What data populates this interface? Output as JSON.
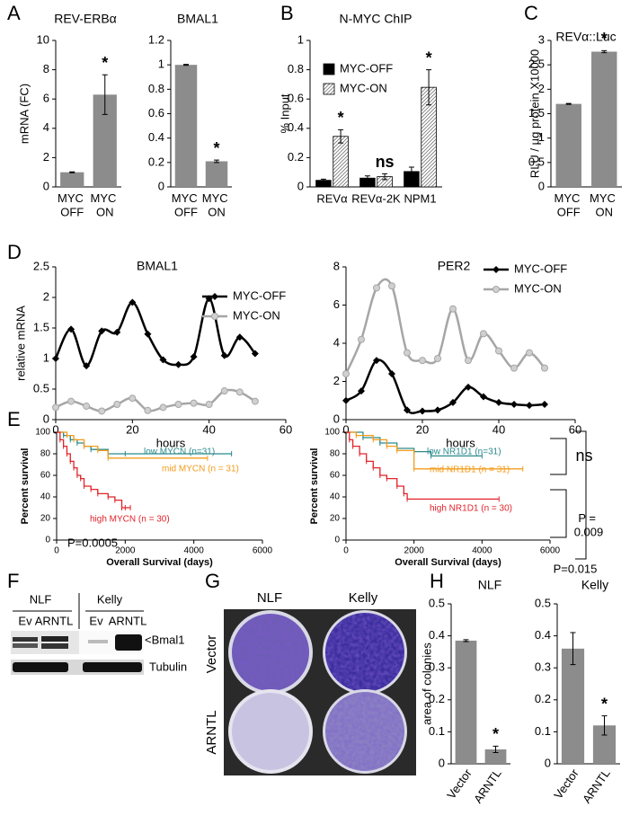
{
  "panels": [
    "A",
    "B",
    "C",
    "D",
    "E",
    "F",
    "G",
    "H"
  ],
  "blot": {
    "groups": [
      "NLF",
      "Kelly"
    ],
    "lanes": [
      "Ev",
      "ARNTL",
      "Ev",
      "ARNTL"
    ],
    "bands": [
      "<Bmal1",
      "Tubulin"
    ]
  },
  "plates": {
    "columns": [
      "NLF",
      "Kelly"
    ],
    "rows": [
      "Vector",
      "ARNTL"
    ]
  },
  "chart_data": [
    {
      "type": "bar",
      "title": "REV-ERBα",
      "y_label": "mRNA (FC)",
      "categories": [
        "MYC OFF",
        "MYC ON"
      ],
      "values": [
        1,
        6.3
      ],
      "errors": [
        0.03,
        1.35
      ],
      "color": "#8c8c8c",
      "ylim": [
        0,
        10
      ],
      "yticks": [
        0,
        2,
        4,
        6,
        8,
        10
      ],
      "annotations": [
        "*"
      ]
    },
    {
      "type": "bar",
      "title": "BMAL1",
      "categories": [
        "MYC OFF",
        "MYC ON"
      ],
      "values": [
        1,
        0.21
      ],
      "errors": [
        0.004,
        0.01
      ],
      "color": "#8c8c8c",
      "ylim": [
        0,
        1.2
      ],
      "yticks": [
        0,
        0.2,
        0.4,
        0.6,
        0.8,
        1,
        1.2
      ],
      "annotations": [
        "*"
      ]
    },
    {
      "type": "bar",
      "title": "N-MYC ChIP",
      "y_label": "% Input",
      "categories": [
        "REVα",
        "REVα-2K",
        "NPM1"
      ],
      "series": [
        {
          "name": "MYC-OFF",
          "color": "#000000",
          "values": [
            0.045,
            0.06,
            0.105
          ],
          "errors": [
            0.008,
            0.015,
            0.03
          ]
        },
        {
          "name": "MYC-ON",
          "color": "#ffffff",
          "pattern": "hatch",
          "values": [
            0.345,
            0.07,
            0.68
          ],
          "errors": [
            0.045,
            0.02,
            0.12
          ]
        }
      ],
      "ylim": [
        0,
        1
      ],
      "yticks": [
        0,
        0.2,
        0.4,
        0.6,
        0.8,
        1
      ],
      "annotations": [
        "*",
        "ns",
        "*"
      ]
    },
    {
      "type": "bar",
      "title": "REVα::Luc",
      "y_label": "RLU / µg protein X10000",
      "categories": [
        "MYC OFF",
        "MYC ON"
      ],
      "values": [
        1.7,
        2.77
      ],
      "errors": [
        0.01,
        0.02
      ],
      "color": "#8c8c8c",
      "ylim": [
        0,
        3
      ],
      "yticks": [
        0,
        0.5,
        1,
        1.5,
        2,
        2.5,
        3
      ],
      "annotations": [
        "*"
      ]
    },
    {
      "type": "line",
      "title": "BMAL1",
      "x_label": "hours",
      "y_label": "relative mRNA",
      "x": [
        0,
        4,
        8,
        12,
        16,
        20,
        24,
        28,
        32,
        36,
        40,
        44,
        48,
        52
      ],
      "series": [
        {
          "name": "MYC-OFF",
          "color": "#000000",
          "marker": "diamond",
          "values": [
            1.0,
            1.48,
            0.88,
            1.45,
            1.43,
            1.92,
            1.4,
            0.98,
            0.9,
            1.03,
            1.98,
            1.05,
            1.35,
            1.08
          ]
        },
        {
          "name": "MYC-ON",
          "color": "#a6a6a6",
          "marker": "circle",
          "values": [
            0.2,
            0.3,
            0.22,
            0.14,
            0.25,
            0.35,
            0.15,
            0.2,
            0.25,
            0.27,
            0.25,
            0.47,
            0.45,
            0.3
          ]
        }
      ],
      "xlim": [
        0,
        60
      ],
      "xticks": [
        0,
        20,
        40,
        60
      ],
      "ylim": [
        0,
        2.5
      ],
      "yticks": [
        0,
        0.5,
        1,
        1.5,
        2,
        2.5
      ]
    },
    {
      "type": "line",
      "title": "PER2",
      "x_label": "hours",
      "x": [
        0,
        4,
        8,
        12,
        16,
        20,
        24,
        28,
        32,
        36,
        40,
        44,
        48,
        52
      ],
      "series": [
        {
          "name": "MYC-OFF",
          "color": "#000000",
          "marker": "diamond",
          "values": [
            1.0,
            1.5,
            3.1,
            2.4,
            0.5,
            0.45,
            0.5,
            0.9,
            1.7,
            1.2,
            0.9,
            0.8,
            0.75,
            0.8
          ]
        },
        {
          "name": "MYC-ON",
          "color": "#a6a6a6",
          "marker": "circle",
          "values": [
            2.4,
            4.2,
            6.9,
            7.0,
            3.5,
            3.1,
            3.2,
            5.8,
            3.1,
            4.5,
            3.6,
            2.7,
            3.5,
            2.7
          ]
        }
      ],
      "xlim": [
        0,
        60
      ],
      "xticks": [
        0,
        20,
        40,
        60
      ],
      "ylim": [
        0,
        8
      ],
      "yticks": [
        0,
        2,
        4,
        6,
        8
      ]
    },
    {
      "type": "step",
      "x_label": "Overall Survival (days)",
      "y_label": "Percent survival",
      "series": [
        {
          "name": "low MYCN (n=31)",
          "color": "#2a8a8c",
          "x": [
            0,
            200,
            400,
            600,
            800,
            1000,
            1500,
            2000,
            5100
          ],
          "values": [
            100,
            97,
            93,
            90,
            87,
            84,
            80,
            80,
            80
          ]
        },
        {
          "name": "mid MYCN (n = 31)",
          "color": "#f39c1c",
          "x": [
            0,
            300,
            500,
            800,
            1200,
            1500,
            4400
          ],
          "values": [
            100,
            97,
            93,
            87,
            83,
            76,
            76
          ]
        },
        {
          "name": "high MYCN (n = 30)",
          "color": "#e2232a",
          "x": [
            0,
            100,
            200,
            300,
            400,
            500,
            600,
            700,
            800,
            1000,
            1200,
            1500,
            1700,
            1900,
            2000,
            2150
          ],
          "values": [
            100,
            93,
            87,
            80,
            73,
            67,
            60,
            57,
            50,
            47,
            43,
            40,
            37,
            30,
            30,
            30
          ]
        }
      ],
      "xlim": [
        0,
        6000
      ],
      "xticks": [
        0,
        2000,
        4000,
        6000
      ],
      "ylim": [
        0,
        100
      ],
      "yticks": [
        0,
        20,
        40,
        60,
        80,
        100
      ],
      "annotations": [
        "P=0.0005"
      ]
    },
    {
      "type": "step",
      "x_label": "Overall Survival (days)",
      "y_label": "Percent survival",
      "series": [
        {
          "name": "low NR1D1  (n=31)",
          "color": "#2a8a8c",
          "x": [
            0,
            500,
            1000,
            1500,
            2000,
            2500,
            4000
          ],
          "values": [
            100,
            95,
            90,
            85,
            82,
            78,
            78
          ]
        },
        {
          "name": "mid NR1D1 (n = 31)",
          "color": "#f39c1c",
          "x": [
            0,
            300,
            800,
            1200,
            1500,
            2000,
            5200
          ],
          "values": [
            100,
            97,
            93,
            87,
            83,
            66,
            66
          ]
        },
        {
          "name": "high NR1D1 (n = 30)",
          "color": "#e2232a",
          "x": [
            0,
            100,
            200,
            400,
            600,
            800,
            1000,
            1200,
            1500,
            1700,
            1800,
            4500
          ],
          "values": [
            100,
            93,
            87,
            80,
            73,
            67,
            60,
            57,
            50,
            43,
            38,
            38
          ]
        }
      ],
      "xlim": [
        0,
        6000
      ],
      "xticks": [
        0,
        2000,
        4000,
        6000
      ],
      "ylim": [
        0,
        100
      ],
      "yticks": [
        0,
        20,
        40,
        60,
        80,
        100
      ],
      "annotations": [
        "ns",
        "P = 0.009",
        "P=0.015"
      ]
    },
    {
      "type": "bar",
      "title": "NLF",
      "y_label": "area of colonies",
      "categories": [
        "Vector",
        "ARNTL"
      ],
      "values": [
        0.385,
        0.045
      ],
      "errors": [
        0.003,
        0.01
      ],
      "color": "#8c8c8c",
      "ylim": [
        0,
        0.5
      ],
      "yticks": [
        0,
        0.1,
        0.2,
        0.3,
        0.4,
        0.5
      ],
      "annotations": [
        "*"
      ]
    },
    {
      "type": "bar",
      "title": "Kelly",
      "categories": [
        "Vector",
        "ARNTL"
      ],
      "values": [
        0.36,
        0.12
      ],
      "errors": [
        0.05,
        0.03
      ],
      "color": "#8c8c8c",
      "ylim": [
        0,
        0.5
      ],
      "yticks": [
        0,
        0.1,
        0.2,
        0.3,
        0.4,
        0.5
      ],
      "annotations": [
        "*"
      ]
    }
  ]
}
